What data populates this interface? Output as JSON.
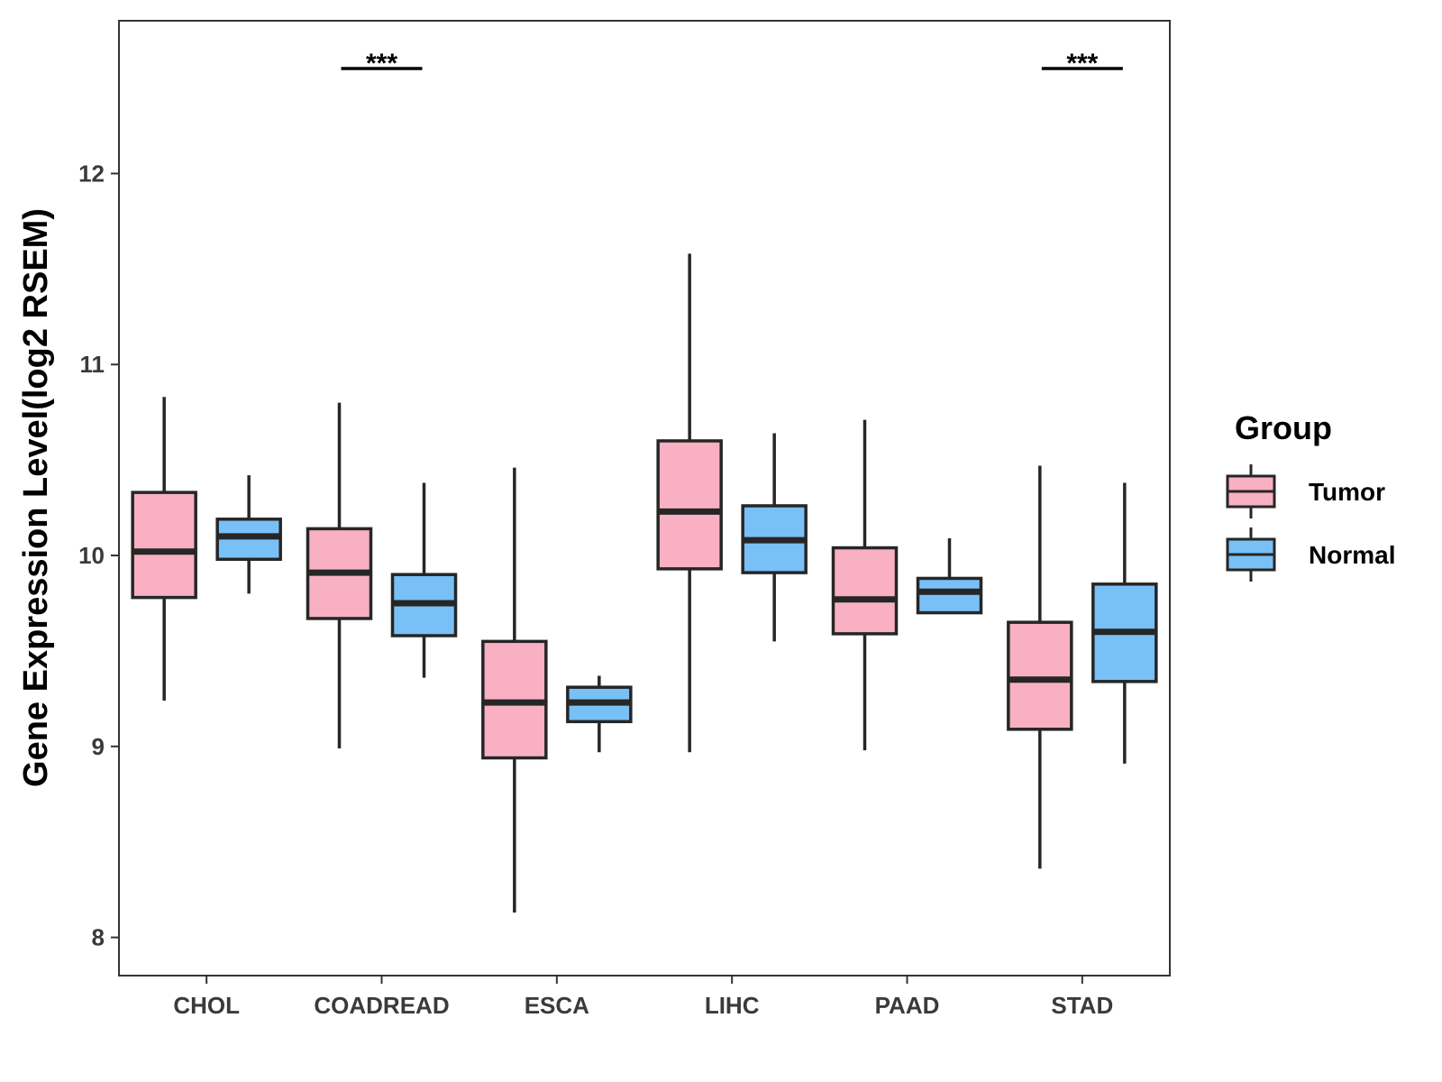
{
  "chart_data": {
    "type": "boxplot",
    "title": "",
    "xlabel": "",
    "ylabel": "Gene Expression Level(log2 RSEM)",
    "ylim": [
      7.8,
      12.8
    ],
    "yticks": [
      8,
      9,
      10,
      11,
      12
    ],
    "grid": false,
    "categories": [
      "CHOL",
      "COADREAD",
      "ESCA",
      "LIHC",
      "PAAD",
      "STAD"
    ],
    "legend": {
      "title": "Group",
      "position": "right",
      "entries": [
        "Tumor",
        "Normal"
      ]
    },
    "colors": {
      "Tumor": "#f9b0c3",
      "Normal": "#79c0f7",
      "stroke": "#262626"
    },
    "series": [
      {
        "name": "Tumor",
        "boxes": [
          {
            "min": 9.24,
            "q1": 9.78,
            "median": 10.02,
            "q3": 10.33,
            "max": 10.83
          },
          {
            "min": 8.99,
            "q1": 9.67,
            "median": 9.91,
            "q3": 10.14,
            "max": 10.8
          },
          {
            "min": 8.13,
            "q1": 8.94,
            "median": 9.23,
            "q3": 9.55,
            "max": 10.46
          },
          {
            "min": 8.97,
            "q1": 9.93,
            "median": 10.23,
            "q3": 10.6,
            "max": 11.58
          },
          {
            "min": 8.98,
            "q1": 9.59,
            "median": 9.77,
            "q3": 10.04,
            "max": 10.71
          },
          {
            "min": 8.36,
            "q1": 9.09,
            "median": 9.35,
            "q3": 9.65,
            "max": 10.47
          }
        ]
      },
      {
        "name": "Normal",
        "boxes": [
          {
            "min": 9.8,
            "q1": 9.98,
            "median": 10.1,
            "q3": 10.19,
            "max": 10.42
          },
          {
            "min": 9.36,
            "q1": 9.58,
            "median": 9.75,
            "q3": 9.9,
            "max": 10.38
          },
          {
            "min": 8.97,
            "q1": 9.13,
            "median": 9.23,
            "q3": 9.31,
            "max": 9.37
          },
          {
            "min": 9.55,
            "q1": 9.91,
            "median": 10.08,
            "q3": 10.26,
            "max": 10.64
          },
          {
            "min": 9.7,
            "q1": 9.7,
            "median": 9.81,
            "q3": 9.88,
            "max": 10.09
          },
          {
            "min": 8.91,
            "q1": 9.34,
            "median": 9.6,
            "q3": 9.85,
            "max": 10.38
          }
        ]
      }
    ],
    "annotations": [
      {
        "category": "COADREAD",
        "label": "***",
        "y": 12.55
      },
      {
        "category": "STAD",
        "label": "***",
        "y": 12.55
      }
    ]
  }
}
